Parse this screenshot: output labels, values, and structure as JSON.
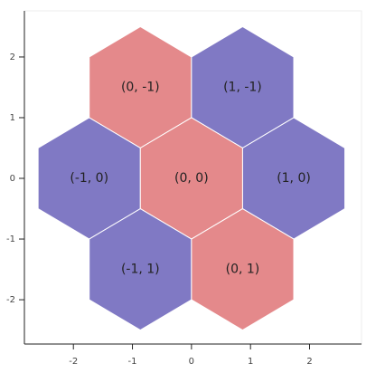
{
  "chart_data": {
    "type": "hex_tile",
    "size": 1,
    "orientation": "pointytop",
    "tiles": [
      {
        "q": 0,
        "r": -1,
        "label": "(0, -1)",
        "color": "#e4898b"
      },
      {
        "q": 1,
        "r": -1,
        "label": "(1, -1)",
        "color": "#8079c4"
      },
      {
        "q": -1,
        "r": 0,
        "label": "(-1, 0)",
        "color": "#8079c4"
      },
      {
        "q": 0,
        "r": 0,
        "label": "(0, 0)",
        "color": "#e4898b"
      },
      {
        "q": 1,
        "r": 0,
        "label": "(1, 0)",
        "color": "#8079c4"
      },
      {
        "q": -1,
        "r": 1,
        "label": "(-1, 1)",
        "color": "#8079c4"
      },
      {
        "q": 0,
        "r": 1,
        "label": "(0, 1)",
        "color": "#e4898b"
      }
    ],
    "xlim": [
      -2.83,
      2.88
    ],
    "ylim": [
      -2.73,
      2.76
    ],
    "xticks": [
      -2,
      -1,
      0,
      1,
      2
    ],
    "yticks": [
      -2,
      -1,
      0,
      1,
      2
    ],
    "grid": false
  }
}
